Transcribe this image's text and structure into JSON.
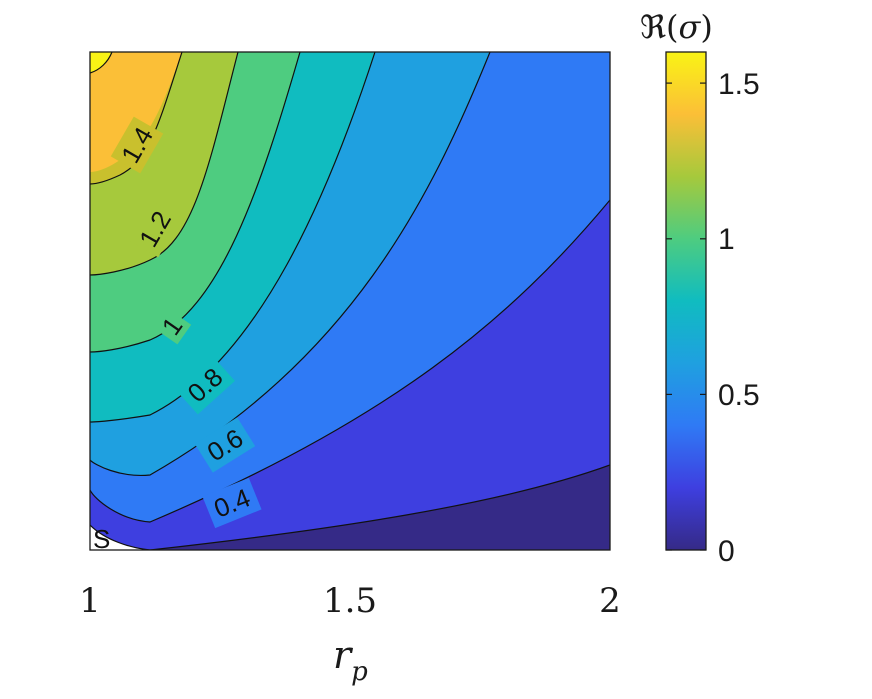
{
  "chart_data": {
    "type": "contour",
    "xlabel": "r",
    "xlabel_subscript": "p",
    "xlim": [
      1,
      2
    ],
    "x_ticks": [
      "1",
      "1.5",
      "2"
    ],
    "colorbar": {
      "title_prefix": "ℜ(",
      "title_symbol": "σ",
      "title_suffix": ")",
      "range": [
        0,
        1.6
      ],
      "ticks": [
        "0",
        "0.5",
        "1",
        "1.5"
      ],
      "colormap": "parula"
    },
    "contour_levels": [
      0.2,
      0.4,
      0.6,
      0.8,
      1.0,
      1.2,
      1.4,
      1.6
    ],
    "fill_colors": [
      "#352a87",
      "#3e3fe0",
      "#2f7af5",
      "#1fa0e0",
      "#10bcc0",
      "#4ecc80",
      "#a6c93c",
      "#c9c02d",
      "#fbbf37",
      "#f9f315"
    ],
    "contour_labels": [
      {
        "text": "1.4",
        "value": 1.4
      },
      {
        "text": "1.2",
        "value": 1.2
      },
      {
        "text": "1",
        "value": 1.0
      },
      {
        "text": "0.8",
        "value": 0.8
      },
      {
        "text": "0.6",
        "value": 0.6
      },
      {
        "text": "0.4",
        "value": 0.4
      }
    ],
    "region_label": "S"
  }
}
